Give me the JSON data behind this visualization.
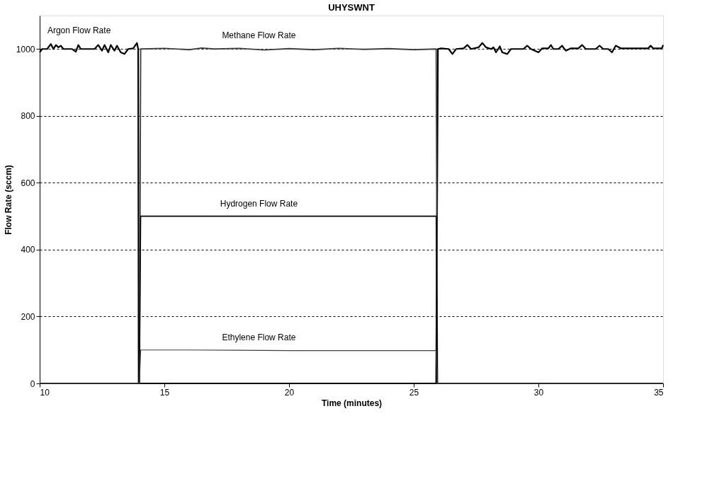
{
  "chart_data": {
    "type": "line",
    "title": "UHYSWNT",
    "xlabel": "Time (minutes)",
    "ylabel": "Flow Rate (sccm)",
    "xlim": [
      10,
      35
    ],
    "xticks": [
      10,
      15,
      20,
      25,
      30,
      35
    ],
    "ylim": [
      0,
      1100
    ],
    "yticks": [
      0,
      200,
      400,
      600,
      800,
      1000
    ],
    "grid": "y",
    "legend": false,
    "marker": "none",
    "line_style": "solid",
    "series": [
      {
        "name": "Argon Flow Rate",
        "color": "#000000",
        "x": [
          10,
          10.1,
          10.3,
          10.45,
          10.55,
          10.65,
          10.75,
          10.85,
          10.95,
          11.3,
          11.45,
          11.55,
          11.65,
          12.0,
          12.2,
          12.35,
          12.5,
          12.6,
          12.75,
          12.85,
          13.0,
          13.1,
          13.25,
          13.4,
          13.55,
          13.75,
          13.9,
          13.95,
          13.97,
          25.9,
          25.97,
          26.1,
          26.4,
          26.55,
          26.7,
          27.0,
          27.15,
          27.3,
          27.6,
          27.75,
          27.9,
          28.1,
          28.2,
          28.3,
          28.45,
          28.55,
          28.75,
          28.9,
          29.4,
          29.55,
          29.7,
          30.0,
          30.15,
          30.4,
          30.5,
          30.6,
          30.8,
          30.95,
          31.1,
          31.3,
          31.6,
          31.75,
          31.9,
          32.3,
          32.45,
          32.6,
          32.8,
          32.95,
          33.1,
          33.3,
          34.4,
          34.5,
          34.6,
          34.95,
          35
        ],
        "values": [
          990,
          1000,
          1000,
          1015,
          1000,
          1012,
          1005,
          1010,
          1000,
          1000,
          992,
          1012,
          1000,
          1000,
          1000,
          1012,
          995,
          1012,
          990,
          1012,
          995,
          1010,
          990,
          985,
          1000,
          1002,
          1018,
          1000,
          0,
          0,
          1000,
          1002,
          1000,
          985,
          1000,
          1002,
          1012,
          1000,
          1005,
          1018,
          1005,
          1000,
          1005,
          990,
          1008,
          990,
          985,
          1000,
          1000,
          1010,
          1000,
          990,
          1002,
          1002,
          1012,
          1000,
          1000,
          1010,
          995,
          1002,
          1002,
          1012,
          1000,
          1000,
          1010,
          1000,
          1000,
          990,
          1010,
          1002,
          1002,
          1010,
          1002,
          1002,
          1012
        ]
      },
      {
        "name": "Methane Flow Rate",
        "color": "#404040",
        "x": [
          10,
          14.0,
          14.05,
          15,
          16,
          16.5,
          17,
          18,
          19,
          20,
          21,
          22,
          23,
          24,
          25,
          25.9,
          25.95,
          35
        ],
        "values": [
          0,
          0,
          1000,
          1002,
          998,
          1003,
          1000,
          1002,
          997,
          1001,
          998,
          1002,
          999,
          1001,
          998,
          1000,
          0,
          0
        ]
      },
      {
        "name": "Hydrogen Flow Rate",
        "color": "#000000",
        "x": [
          10,
          14.0,
          14.05,
          25.9,
          25.95,
          35
        ],
        "values": [
          0,
          0,
          500,
          500,
          0,
          0
        ]
      },
      {
        "name": "Ethylene Flow Rate",
        "color": "#404040",
        "x": [
          10,
          14.0,
          14.05,
          16,
          18,
          20,
          22,
          24,
          25.9,
          25.95,
          35
        ],
        "values": [
          0,
          0,
          100,
          100,
          99,
          98,
          98,
          98,
          98,
          0,
          0
        ]
      }
    ]
  }
}
